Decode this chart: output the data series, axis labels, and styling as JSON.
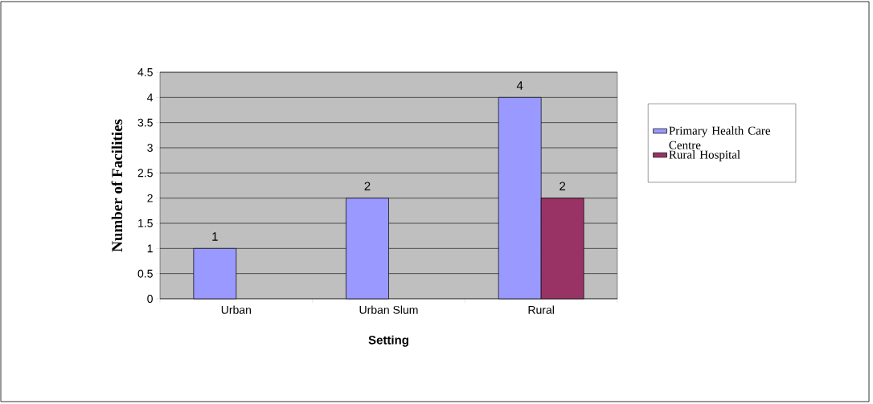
{
  "chart_data": {
    "type": "bar",
    "xlabel": "Setting",
    "ylabel": "Number of Facilities",
    "categories": [
      "Urban",
      "Urban Slum",
      "Rural"
    ],
    "series": [
      {
        "name": "Primary Health Care Centre",
        "color": "#9999ff",
        "values": [
          1,
          2,
          4
        ]
      },
      {
        "name": "Rural Hospital",
        "color": "#993366",
        "values": [
          null,
          null,
          2
        ]
      }
    ],
    "ylim": [
      0,
      4.5
    ],
    "yticks": [
      0,
      0.5,
      1,
      1.5,
      2,
      2.5,
      3,
      3.5,
      4,
      4.5
    ],
    "grid": "y",
    "legend": "right",
    "data_labels": true
  }
}
